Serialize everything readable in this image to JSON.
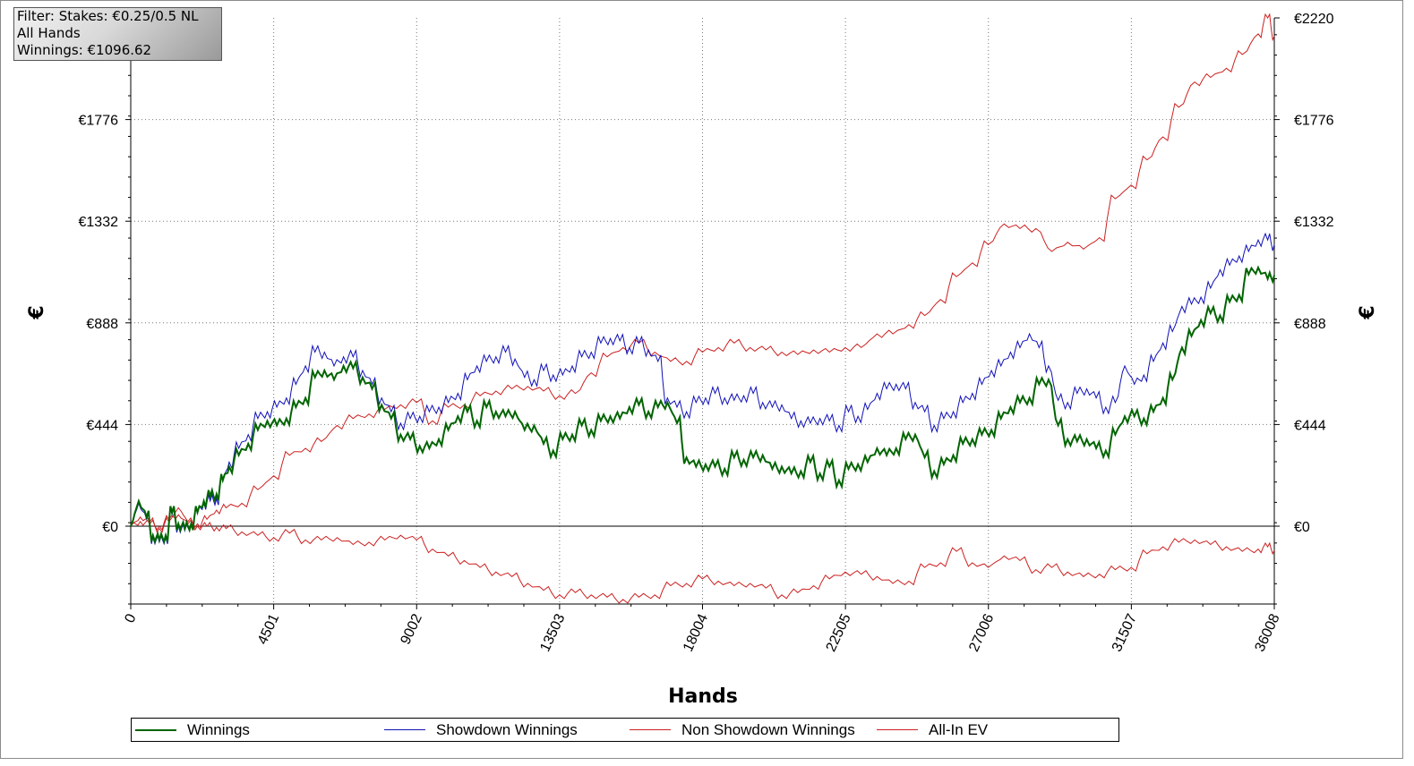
{
  "filter_panel": {
    "line1": "Filter: Stakes: €0.25/0.5 NL",
    "line2": "All Hands",
    "line3": "Winnings: €1096.62"
  },
  "chart_data": {
    "type": "line",
    "xlabel": "Hands",
    "ylabel_left": "€",
    "ylabel_right": "€",
    "xlim": [
      0,
      36008
    ],
    "ylim": [
      -340,
      2220
    ],
    "x_ticks": [
      0,
      4501,
      9002,
      13503,
      18004,
      22505,
      27006,
      31507,
      36008
    ],
    "x_tick_labels": [
      "0",
      "4501",
      "9002",
      "13503",
      "18004",
      "22505",
      "27006",
      "31507",
      "36008"
    ],
    "y_ticks": [
      0,
      444,
      888,
      1332,
      1776,
      2220
    ],
    "y_tick_labels_left": [
      "€0",
      "€444",
      "€888",
      "€1332",
      "€1776"
    ],
    "y_tick_labels_right": [
      "€0",
      "€444",
      "€888",
      "€1332",
      "€1776",
      "€2220"
    ],
    "grid": true,
    "legend_position": "bottom",
    "series": [
      {
        "name": "Winnings",
        "color": "#006400",
        "x": [
          0,
          250,
          500,
          700,
          900,
          1100,
          1300,
          1500,
          1700,
          1900,
          2100,
          2300,
          2500,
          2700,
          2900,
          3100,
          3400,
          3700,
          4000,
          4300,
          4600,
          4900,
          5200,
          5500,
          5800,
          6100,
          6400,
          6700,
          7000,
          7300,
          7600,
          7900,
          8200,
          8500,
          8800,
          9100,
          9400,
          9700,
          10000,
          10300,
          10600,
          10900,
          11200,
          11500,
          11800,
          12100,
          12400,
          12700,
          13000,
          13300,
          13600,
          13900,
          14200,
          14500,
          14800,
          15100,
          15400,
          15700,
          16000,
          16300,
          16600,
          16900,
          17200,
          17500,
          17800,
          18100,
          18400,
          18700,
          19000,
          19300,
          19600,
          19900,
          20200,
          20500,
          20800,
          21100,
          21400,
          21700,
          22000,
          22300,
          22600,
          22900,
          23200,
          23500,
          23800,
          24100,
          24400,
          24700,
          25000,
          25300,
          25600,
          25900,
          26200,
          26500,
          26800,
          27100,
          27400,
          27700,
          28000,
          28300,
          28600,
          28900,
          29200,
          29500,
          29800,
          30100,
          30400,
          30700,
          31000,
          31300,
          31600,
          31900,
          32200,
          32500,
          32800,
          33100,
          33400,
          33700,
          34000,
          34300,
          34600,
          34900,
          35200,
          35500,
          35800,
          36008
        ],
        "y": [
          0,
          110,
          40,
          -40,
          -60,
          -40,
          60,
          10,
          -10,
          10,
          60,
          110,
          130,
          140,
          200,
          260,
          310,
          360,
          420,
          460,
          440,
          470,
          520,
          560,
          650,
          680,
          640,
          700,
          690,
          650,
          600,
          530,
          470,
          400,
          380,
          350,
          340,
          380,
          420,
          480,
          500,
          460,
          520,
          500,
          480,
          500,
          420,
          440,
          360,
          330,
          380,
          400,
          440,
          420,
          460,
          480,
          470,
          520,
          530,
          500,
          520,
          540,
          450,
          300,
          260,
          270,
          260,
          250,
          300,
          290,
          300,
          310,
          250,
          260,
          230,
          240,
          280,
          230,
          260,
          200,
          250,
          270,
          280,
          340,
          310,
          340,
          380,
          400,
          300,
          240,
          270,
          310,
          360,
          380,
          400,
          420,
          470,
          520,
          540,
          560,
          620,
          640,
          440,
          380,
          370,
          380,
          340,
          330,
          400,
          480,
          480,
          470,
          500,
          560,
          640,
          780,
          830,
          900,
          930,
          920,
          980,
          1010,
          1100,
          1130,
          1080,
          1096
        ]
      },
      {
        "name": "Showdown Winnings",
        "color": "#1010b8",
        "x": [
          0,
          250,
          500,
          700,
          900,
          1100,
          1300,
          1500,
          1700,
          1900,
          2100,
          2300,
          2500,
          2700,
          2900,
          3100,
          3400,
          3700,
          4000,
          4300,
          4600,
          4900,
          5200,
          5500,
          5800,
          6100,
          6400,
          6700,
          7000,
          7300,
          7600,
          7900,
          8200,
          8500,
          8800,
          9100,
          9400,
          9700,
          10000,
          10300,
          10600,
          10900,
          11200,
          11500,
          11800,
          12100,
          12400,
          12700,
          13000,
          13300,
          13600,
          13900,
          14200,
          14500,
          14800,
          15100,
          15400,
          15700,
          16000,
          16300,
          16600,
          16900,
          17200,
          17500,
          17800,
          18100,
          18400,
          18700,
          19000,
          19300,
          19600,
          19900,
          20200,
          20500,
          20800,
          21100,
          21400,
          21700,
          22000,
          22300,
          22600,
          22900,
          23200,
          23500,
          23800,
          24100,
          24400,
          24700,
          25000,
          25300,
          25600,
          25900,
          26200,
          26500,
          26800,
          27100,
          27400,
          27700,
          28000,
          28300,
          28600,
          28900,
          29200,
          29500,
          29800,
          30100,
          30400,
          30700,
          31000,
          31300,
          31600,
          31900,
          32200,
          32500,
          32800,
          33100,
          33400,
          33700,
          34000,
          34300,
          34600,
          34900,
          35200,
          35500,
          35800,
          36008
        ],
        "y": [
          0,
          100,
          30,
          -50,
          -70,
          -50,
          50,
          0,
          -20,
          10,
          60,
          100,
          110,
          120,
          200,
          280,
          340,
          400,
          470,
          500,
          520,
          560,
          620,
          700,
          760,
          760,
          700,
          740,
          740,
          680,
          620,
          560,
          500,
          450,
          470,
          480,
          500,
          520,
          540,
          580,
          640,
          700,
          720,
          740,
          760,
          730,
          650,
          640,
          680,
          660,
          660,
          700,
          740,
          760,
          800,
          820,
          810,
          780,
          800,
          770,
          720,
          560,
          520,
          500,
          540,
          560,
          580,
          560,
          550,
          570,
          580,
          540,
          520,
          530,
          470,
          460,
          450,
          470,
          460,
          440,
          500,
          480,
          510,
          580,
          600,
          620,
          600,
          540,
          500,
          440,
          470,
          500,
          540,
          580,
          620,
          680,
          700,
          760,
          780,
          840,
          780,
          700,
          550,
          540,
          580,
          600,
          560,
          520,
          540,
          700,
          620,
          660,
          720,
          800,
          850,
          960,
          970,
          1000,
          1040,
          1120,
          1140,
          1180,
          1200,
          1250,
          1250,
          1230
        ]
      },
      {
        "name": "Non Showdown Winnings",
        "color": "#cc2020",
        "x": [
          0,
          300,
          600,
          900,
          1200,
          1500,
          1800,
          2100,
          2400,
          2700,
          3000,
          3500,
          4000,
          4500,
          5000,
          5500,
          6000,
          6500,
          7000,
          7500,
          8000,
          8500,
          9000,
          9500,
          10000,
          10500,
          11000,
          11500,
          12000,
          12500,
          13000,
          13500,
          14000,
          14500,
          15000,
          15500,
          16000,
          16500,
          17000,
          17500,
          18000,
          18500,
          19000,
          19500,
          20000,
          20500,
          21000,
          21500,
          22000,
          22500,
          23000,
          23500,
          24000,
          24500,
          25000,
          25500,
          26000,
          26500,
          27000,
          27500,
          28000,
          28500,
          29000,
          29500,
          30000,
          30500,
          31000,
          31500,
          32000,
          32500,
          33000,
          33500,
          34000,
          34500,
          35000,
          35500,
          35800,
          36008
        ],
        "y": [
          0,
          20,
          10,
          0,
          30,
          50,
          10,
          0,
          0,
          -5,
          -10,
          -25,
          -40,
          -50,
          -30,
          -60,
          -60,
          -50,
          -80,
          -70,
          -60,
          -40,
          -60,
          -100,
          -130,
          -150,
          -180,
          -200,
          -220,
          -250,
          -280,
          -300,
          -290,
          -300,
          -310,
          -320,
          -310,
          -300,
          -260,
          -250,
          -230,
          -240,
          -260,
          -250,
          -270,
          -300,
          -290,
          -260,
          -230,
          -200,
          -210,
          -220,
          -250,
          -240,
          -180,
          -160,
          -110,
          -160,
          -180,
          -130,
          -150,
          -190,
          -180,
          -200,
          -220,
          -210,
          -190,
          -180,
          -120,
          -90,
          -70,
          -60,
          -80,
          -90,
          -110,
          -100,
          -90,
          -105
        ]
      },
      {
        "name": "All-In EV",
        "color": "#cc2020",
        "x": [
          0,
          300,
          600,
          900,
          1200,
          1500,
          1800,
          2100,
          2400,
          2700,
          3000,
          3500,
          4000,
          4500,
          5000,
          5500,
          6000,
          6500,
          7000,
          7500,
          8000,
          8500,
          9000,
          9500,
          10000,
          10500,
          11000,
          11500,
          12000,
          12500,
          13000,
          13500,
          14000,
          14500,
          15000,
          15500,
          16000,
          16500,
          17000,
          17500,
          18000,
          18500,
          19000,
          19500,
          20000,
          20500,
          21000,
          21500,
          22000,
          22500,
          23000,
          23500,
          24000,
          24500,
          25000,
          25500,
          26000,
          26500,
          27000,
          27500,
          28000,
          28500,
          29000,
          29500,
          30000,
          30500,
          31000,
          31500,
          32000,
          32500,
          33000,
          33500,
          34000,
          34500,
          35000,
          35500,
          35800,
          36008
        ],
        "y": [
          0,
          40,
          20,
          -10,
          20,
          80,
          20,
          10,
          30,
          70,
          80,
          100,
          160,
          220,
          310,
          340,
          370,
          440,
          470,
          490,
          510,
          530,
          540,
          460,
          520,
          530,
          570,
          590,
          600,
          610,
          590,
          570,
          580,
          670,
          740,
          780,
          800,
          760,
          720,
          720,
          760,
          780,
          800,
          780,
          770,
          760,
          750,
          770,
          760,
          780,
          780,
          840,
          840,
          880,
          920,
          990,
          1090,
          1150,
          1230,
          1320,
          1300,
          1300,
          1200,
          1240,
          1210,
          1260,
          1430,
          1490,
          1600,
          1700,
          1830,
          1940,
          1960,
          2000,
          2060,
          2150,
          2220,
          2140
        ]
      }
    ]
  }
}
